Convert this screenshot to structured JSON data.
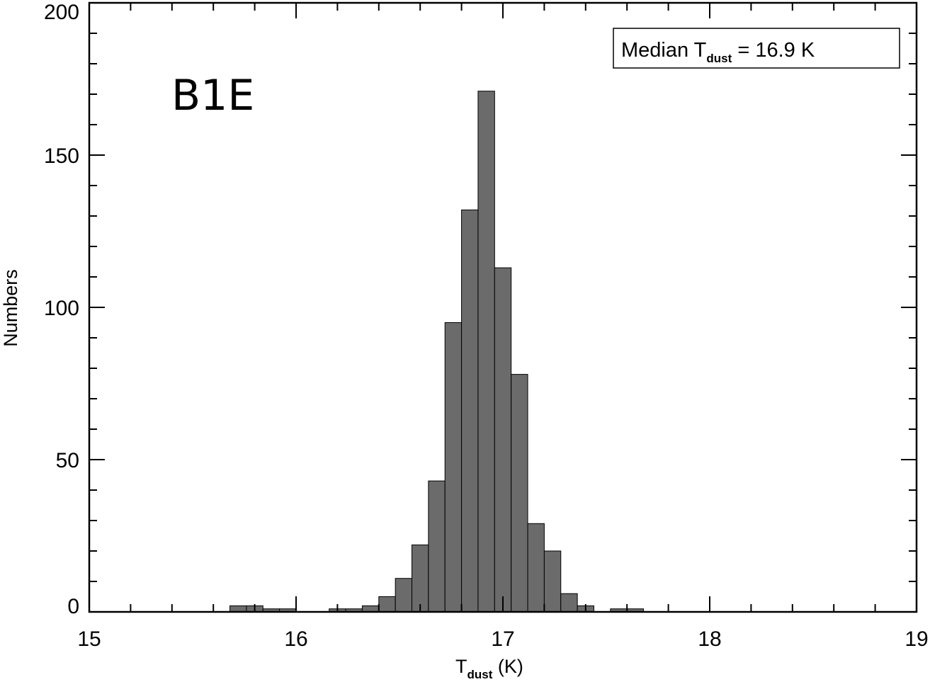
{
  "chart_data": {
    "type": "bar",
    "panel_label": "B1E",
    "annotation": {
      "prefix": "Median T",
      "subscript": "dust",
      "suffix": " = 16.9 K"
    },
    "xlabel": {
      "main": "T",
      "subscript": "dust",
      "suffix": " (K)"
    },
    "ylabel": "Numbers",
    "xlim": [
      15,
      19
    ],
    "ylim": [
      0,
      200
    ],
    "x_ticks": [
      15,
      16,
      17,
      18,
      19
    ],
    "y_ticks": [
      0,
      50,
      100,
      150,
      200
    ],
    "x_minor_step": 0.2,
    "y_minor_step": 10,
    "bin_width": 0.08,
    "bin_left_edges": [
      15.68,
      15.76,
      15.84,
      15.92,
      16.16,
      16.24,
      16.32,
      16.4,
      16.48,
      16.56,
      16.64,
      16.72,
      16.8,
      16.88,
      16.96,
      17.04,
      17.12,
      17.2,
      17.28,
      17.36,
      17.52,
      17.6
    ],
    "counts": [
      2,
      2,
      1,
      1,
      1,
      1,
      2,
      5,
      11,
      22,
      43,
      95,
      132,
      171,
      113,
      78,
      29,
      20,
      6,
      2,
      1,
      1
    ],
    "bar_color": "#6b6b6b",
    "edge_color": "#000000"
  }
}
